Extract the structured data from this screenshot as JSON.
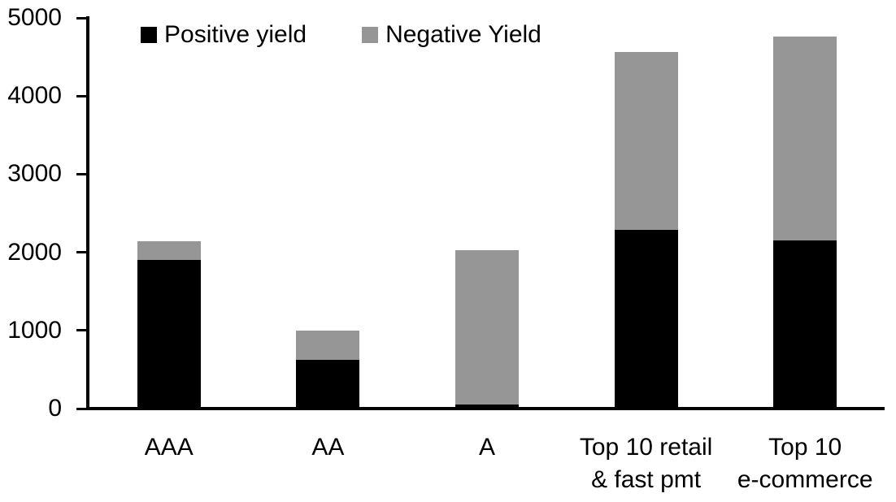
{
  "chart_data": {
    "type": "bar",
    "stacked": true,
    "title": "",
    "xlabel": "",
    "ylabel": "",
    "categories": [
      "AAA",
      "AA",
      "A",
      "Top 10 retail\n& fast pmt",
      "Top 10\ne-commerce"
    ],
    "series": [
      {
        "name": "Positive yield",
        "color": "#000000",
        "values": [
          1900,
          620,
          50,
          2290,
          2150
        ]
      },
      {
        "name": "Negative Yield",
        "color": "#969696",
        "values": [
          240,
          380,
          1980,
          2270,
          2610
        ]
      }
    ],
    "totals": [
      2140,
      1000,
      2030,
      4560,
      4760
    ],
    "ylim": [
      0,
      5000
    ],
    "yticks": [
      "0",
      "1000",
      "2000",
      "3000",
      "4000",
      "5000"
    ],
    "ytick_values": [
      0,
      1000,
      2000,
      3000,
      4000,
      5000
    ],
    "grid": false,
    "legend_position": "top"
  }
}
